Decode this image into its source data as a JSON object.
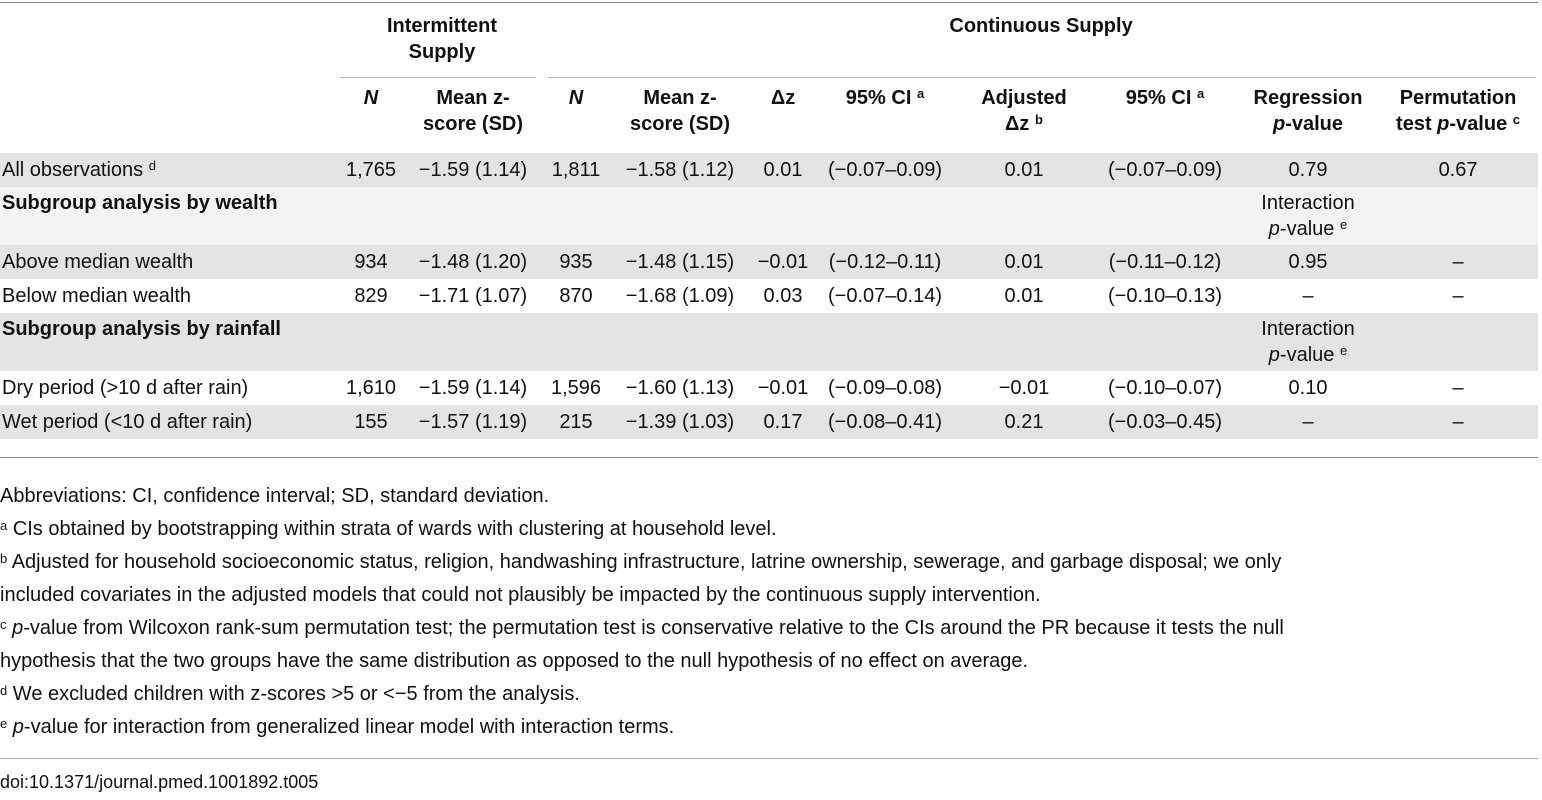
{
  "header": {
    "group_intermittent": "Intermittent Supply",
    "group_continuous": "Continuous Supply",
    "col_n": "N",
    "col_mean": "Mean z-score (SD)",
    "col_mean_l1": "Mean z-",
    "col_mean_l2": "score (SD)",
    "col_dz": "Δz",
    "col_ci": "95% CI",
    "col_ci_sup": "a",
    "col_adj_l1": "Adjusted",
    "col_adj_l2": "Δz",
    "col_adj_sup": "b",
    "col_ci2": "95% CI",
    "col_ci2_sup": "a",
    "col_reg_l1": "Regression",
    "col_reg_l2_italic": "p",
    "col_reg_l2_rest": "-value",
    "col_perm_l1": "Permutation",
    "col_perm_l2_pre": "test ",
    "col_perm_l2_italic": "p",
    "col_perm_l2_rest": "-value",
    "col_perm_sup": "c"
  },
  "rows": {
    "all": {
      "label": "All observations",
      "sup": "d",
      "n1": "1,765",
      "m1": "−1.59 (1.14)",
      "n2": "1,811",
      "m2": "−1.58 (1.12)",
      "dz": "0.01",
      "ci": "(−0.07–0.09)",
      "adj": "0.01",
      "ci2": "(−0.07–0.09)",
      "reg": "0.79",
      "perm": "0.67"
    },
    "sub_wealth": {
      "label": "Subgroup analysis by wealth",
      "int_l1": "Interaction",
      "int_l2_italic": "p",
      "int_l2_rest": "-value",
      "int_sup": "e"
    },
    "above": {
      "label": "Above median wealth",
      "n1": "934",
      "m1": "−1.48 (1.20)",
      "n2": "935",
      "m2": "−1.48 (1.15)",
      "dz": "−0.01",
      "ci": "(−0.12–0.11)",
      "adj": "0.01",
      "ci2": "(−0.11–0.12)",
      "reg": "0.95",
      "perm": "–"
    },
    "below": {
      "label": "Below median wealth",
      "n1": "829",
      "m1": "−1.71 (1.07)",
      "n2": "870",
      "m2": "−1.68 (1.09)",
      "dz": "0.03",
      "ci": "(−0.07–0.14)",
      "adj": "0.01",
      "ci2": "(−0.10–0.13)",
      "reg": "–",
      "perm": "–"
    },
    "sub_rain": {
      "label": "Subgroup analysis by rainfall",
      "int_l1": "Interaction",
      "int_l2_italic": "p",
      "int_l2_rest": "-value",
      "int_sup": "e"
    },
    "dry": {
      "label": "Dry period (>10 d after rain)",
      "n1": "1,610",
      "m1": "−1.59 (1.14)",
      "n2": "1,596",
      "m2": "−1.60 (1.13)",
      "dz": "−0.01",
      "ci": "(−0.09–0.08)",
      "adj": "−0.01",
      "ci2": "(−0.10–0.07)",
      "reg": "0.10",
      "perm": "–"
    },
    "wet": {
      "label": "Wet period (<10 d after rain)",
      "n1": "155",
      "m1": "−1.57 (1.19)",
      "n2": "215",
      "m2": "−1.39 (1.03)",
      "dz": "0.17",
      "ci": "(−0.08–0.41)",
      "adj": "0.21",
      "ci2": "(−0.03–0.45)",
      "reg": "–",
      "perm": "–"
    }
  },
  "notes": {
    "abbrev": "Abbreviations: CI, confidence interval; SD, standard deviation.",
    "a_sup": "a",
    "a": "CIs obtained by bootstrapping within strata of wards with clustering at household level.",
    "b_sup": "b",
    "b_l1": "Adjusted for household socioeconomic status, religion, handwashing infrastructure, latrine ownership, sewerage, and garbage disposal; we only",
    "b_l2": "included covariates in the adjusted models that could not plausibly be impacted by the continuous supply intervention.",
    "c_sup": "c",
    "c_italic": "p",
    "c_l1": "-value from Wilcoxon rank-sum permutation test; the permutation test is conservative relative to the CIs around the PR because it tests the null",
    "c_l2": "hypothesis that the two groups have the same distribution as opposed to the null hypothesis of no effect on average.",
    "d_sup": "d",
    "d": "We excluded children with z-scores >5 or <−5 from the analysis.",
    "e_sup": "e",
    "e_italic": "p",
    "e": "-value for interaction from generalized linear model with interaction terms."
  },
  "doi": "doi:10.1371/journal.pmed.1001892.t005"
}
